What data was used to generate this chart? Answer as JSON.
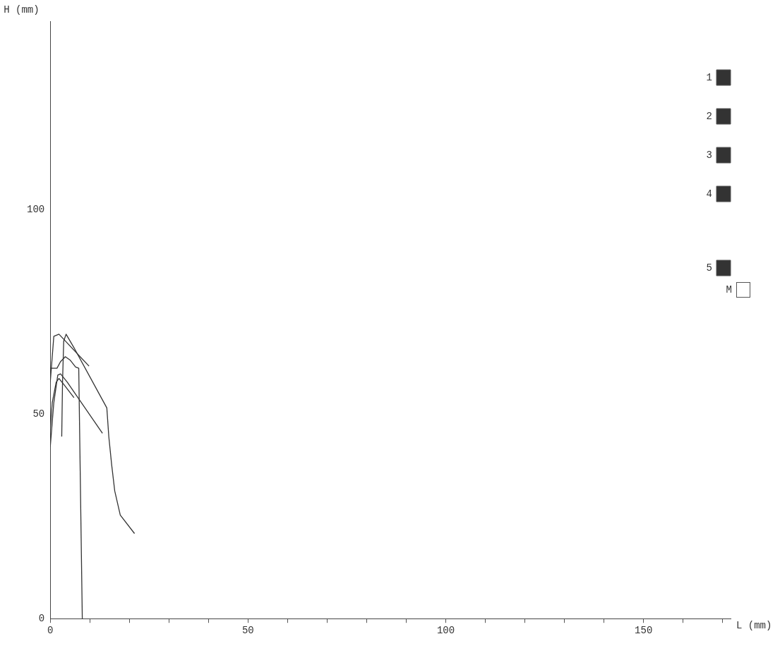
{
  "chart_data": {
    "type": "line",
    "xlabel": "L (mm)",
    "ylabel": "H (mm)",
    "xlim": [
      0,
      172
    ],
    "ylim": [
      0,
      146
    ],
    "xticks": [
      0,
      {
        "value": 10,
        "label": null
      },
      {
        "value": 20,
        "label": null
      },
      {
        "value": 30,
        "label": null
      },
      {
        "value": 40,
        "label": null
      },
      50,
      {
        "value": 60,
        "label": null
      },
      {
        "value": 70,
        "label": null
      },
      {
        "value": 80,
        "label": null
      },
      {
        "value": 90,
        "label": null
      },
      100,
      {
        "value": 110,
        "label": null
      },
      {
        "value": 120,
        "label": null
      },
      {
        "value": 130,
        "label": null
      },
      {
        "value": 140,
        "label": null
      },
      150,
      {
        "value": 160,
        "label": null
      },
      {
        "value": 170,
        "label": null
      }
    ],
    "yticks": [
      0,
      50,
      100
    ],
    "grid": false,
    "legend": "top right",
    "marker": "none",
    "line_style": "solid",
    "series": [
      {
        "name": "1",
        "color": "#333333",
        "x": [
          0,
          0.9,
          2.2,
          9.8
        ],
        "values": [
          57.8,
          69,
          69.5,
          61.7
        ]
      },
      {
        "name": "2",
        "color": "#333333",
        "x": [
          2.9,
          3.1,
          3.4,
          4.0,
          6.0,
          14.3,
          14.8,
          15.5,
          16.3,
          17.7,
          21.3
        ],
        "values": [
          44.5,
          57.8,
          67.8,
          69.5,
          66.2,
          51.5,
          44.5,
          37.8,
          31.2,
          25.3,
          20.8
        ]
      },
      {
        "name": "3",
        "color": "#333333",
        "x": [
          0,
          1.7,
          2.6,
          3.8,
          5.0,
          6.4,
          7.2,
          8.1
        ],
        "values": [
          61.2,
          61.2,
          62.8,
          64,
          63.2,
          61.5,
          61.2,
          0
        ]
      },
      {
        "name": "4",
        "color": "#333333",
        "x": [
          0,
          0.9,
          1.9,
          2.6,
          4.3,
          13.2
        ],
        "values": [
          42,
          52.8,
          59.5,
          59.8,
          57.8,
          45.3
        ]
      },
      {
        "name": "5",
        "color": "#333333",
        "x": [
          0,
          0.5,
          1.5,
          2.2,
          3.6,
          6.0
        ],
        "values": [
          46,
          52.8,
          57.8,
          58.7,
          57,
          54
        ]
      }
    ],
    "annotations": [
      "M"
    ]
  }
}
